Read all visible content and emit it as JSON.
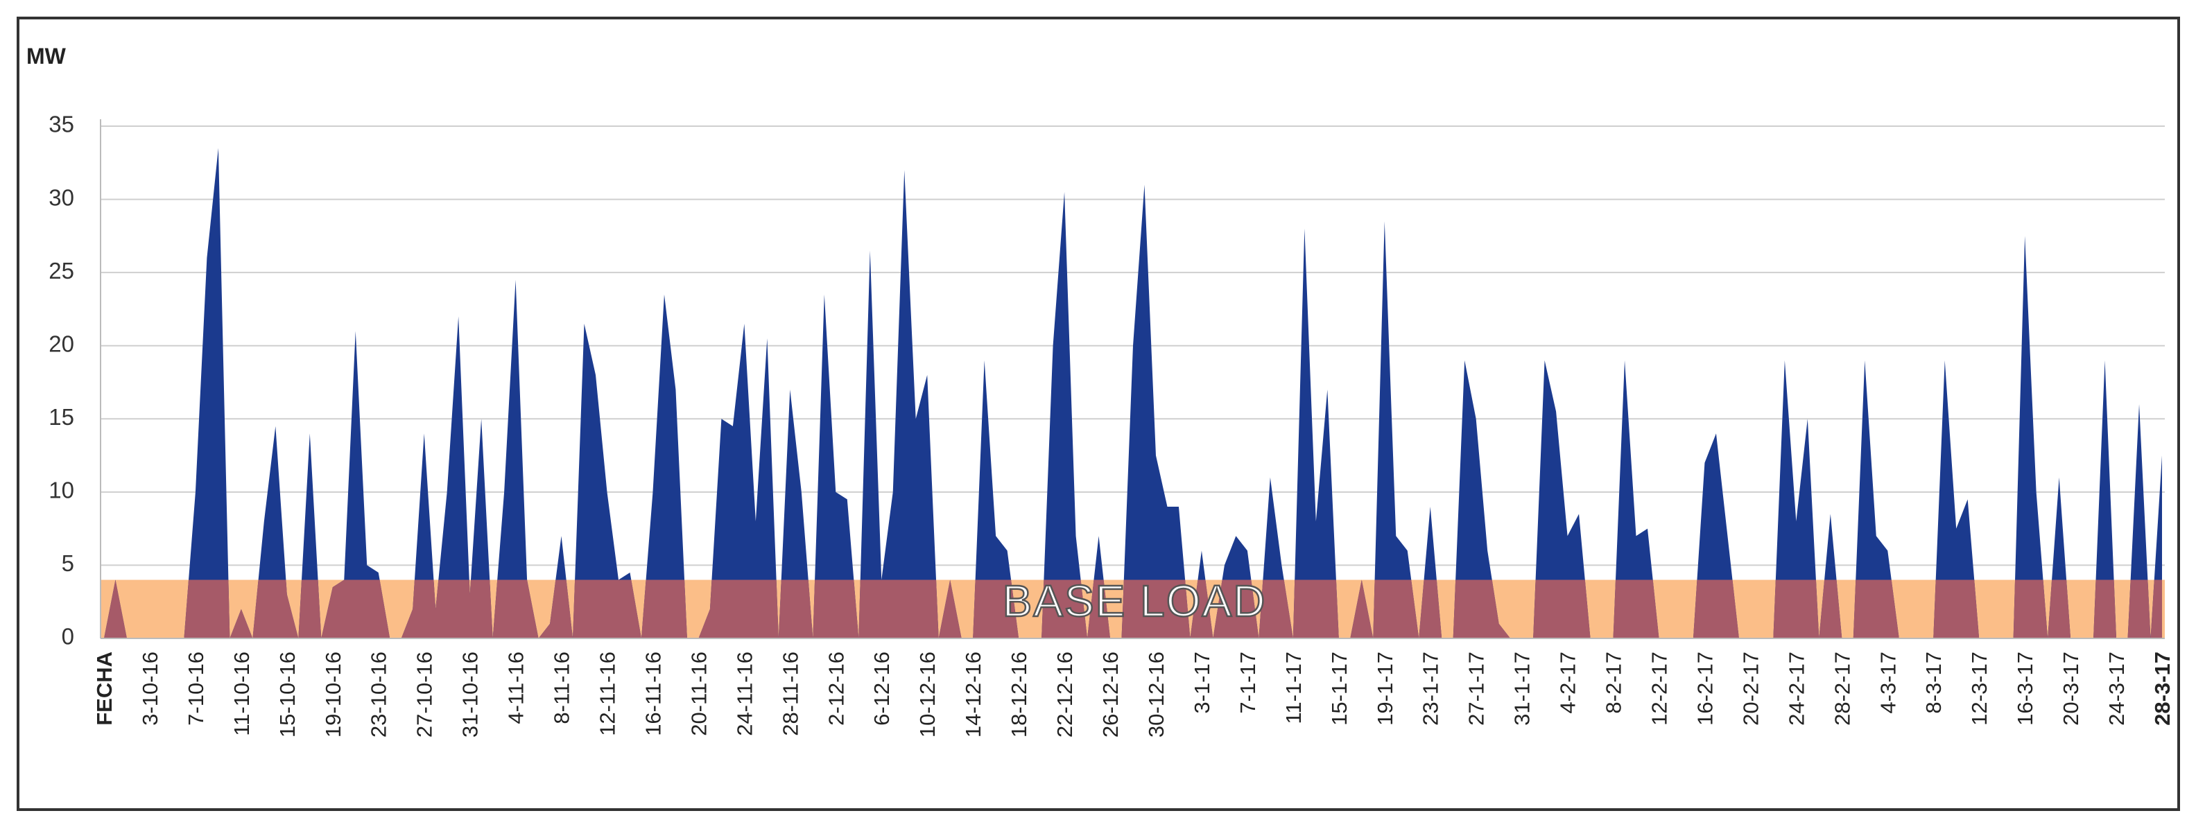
{
  "chart_data": {
    "type": "area",
    "y_label": "MW",
    "ylim": [
      0,
      35
    ],
    "yticks": [
      0,
      5,
      10,
      15,
      20,
      25,
      30,
      35
    ],
    "grid": true,
    "base_load": {
      "label": "BASE LOAD",
      "value": 4,
      "color": "#fbbe88",
      "overlap_color": "#a65a68"
    },
    "categories": [
      "FECHA",
      null,
      null,
      null,
      "3-10-16",
      null,
      null,
      null,
      "7-10-16",
      null,
      null,
      null,
      "11-10-16",
      null,
      null,
      null,
      "15-10-16",
      null,
      null,
      null,
      "19-10-16",
      null,
      null,
      null,
      "23-10-16",
      null,
      null,
      null,
      "27-10-16",
      null,
      null,
      null,
      "31-10-16",
      null,
      null,
      null,
      "4-11-16",
      null,
      null,
      null,
      "8-11-16",
      null,
      null,
      null,
      "12-11-16",
      null,
      null,
      null,
      "16-11-16",
      null,
      null,
      null,
      "20-11-16",
      null,
      null,
      null,
      "24-11-16",
      null,
      null,
      null,
      "28-11-16",
      null,
      null,
      null,
      "2-12-16",
      null,
      null,
      null,
      "6-12-16",
      null,
      null,
      null,
      "10-12-16",
      null,
      null,
      null,
      "14-12-16",
      null,
      null,
      null,
      "18-12-16",
      null,
      null,
      null,
      "22-12-16",
      null,
      null,
      null,
      "26-12-16",
      null,
      null,
      null,
      "30-12-16",
      null,
      null,
      null,
      "3-1-17",
      null,
      null,
      null,
      "7-1-17",
      null,
      null,
      null,
      "11-1-17",
      null,
      null,
      null,
      "15-1-17",
      null,
      null,
      null,
      "19-1-17",
      null,
      null,
      null,
      "23-1-17",
      null,
      null,
      null,
      "27-1-17",
      null,
      null,
      null,
      "31-1-17",
      null,
      null,
      null,
      "4-2-17",
      null,
      null,
      null,
      "8-2-17",
      null,
      null,
      null,
      "12-2-17",
      null,
      null,
      null,
      "16-2-17",
      null,
      null,
      null,
      "20-2-17",
      null,
      null,
      null,
      "24-2-17",
      null,
      null,
      null,
      "28-2-17",
      null,
      null,
      null,
      "4-3-17",
      null,
      null,
      null,
      "8-3-17",
      null,
      null,
      null,
      "12-3-17",
      null,
      null,
      null,
      "16-3-17",
      null,
      null,
      null,
      "20-3-17",
      null,
      null,
      null,
      "24-3-17",
      null,
      null,
      null,
      "28-3-17"
    ],
    "series": [
      {
        "color": "#1b3a8e",
        "values": [
          0,
          4,
          0,
          0,
          0,
          0,
          0,
          0,
          10,
          26,
          33.5,
          0,
          2,
          0,
          8,
          14.5,
          3,
          0,
          14,
          0,
          3.5,
          4,
          21,
          5,
          4.5,
          0,
          0,
          2,
          14,
          2,
          10,
          22,
          3,
          15,
          0,
          10,
          24.5,
          4,
          0,
          1,
          7,
          0,
          21.5,
          18,
          10,
          4,
          4.5,
          0,
          10,
          23.5,
          17,
          0,
          0,
          2,
          15,
          14.5,
          21.5,
          8,
          20.5,
          0,
          17,
          10,
          0,
          23.5,
          10,
          9.5,
          0,
          26.5,
          4,
          10,
          32,
          15,
          18,
          0,
          4,
          0,
          0,
          19,
          7,
          6,
          0,
          0,
          0,
          20,
          30.5,
          7,
          0,
          7,
          0,
          0,
          20,
          31,
          12.5,
          9,
          9,
          0,
          6,
          0,
          5,
          7,
          6,
          0,
          11,
          5,
          0,
          28,
          8,
          17,
          0,
          0,
          4,
          0,
          28.5,
          7,
          6,
          0,
          9,
          0,
          0,
          19,
          15,
          6,
          1,
          0,
          0,
          0,
          19,
          15.5,
          7,
          8.5,
          0,
          0,
          0,
          19,
          7,
          7.5,
          0,
          0,
          0,
          0,
          12,
          14,
          7,
          0,
          0,
          0,
          0,
          19,
          8,
          15,
          0,
          8.5,
          0,
          0,
          19,
          7,
          6,
          0,
          0,
          0,
          0,
          19,
          7.5,
          9.5,
          0,
          0,
          0,
          0,
          27.5,
          10,
          0,
          11,
          0,
          0,
          0,
          19,
          0,
          0,
          16,
          0,
          12.5
        ]
      }
    ]
  }
}
